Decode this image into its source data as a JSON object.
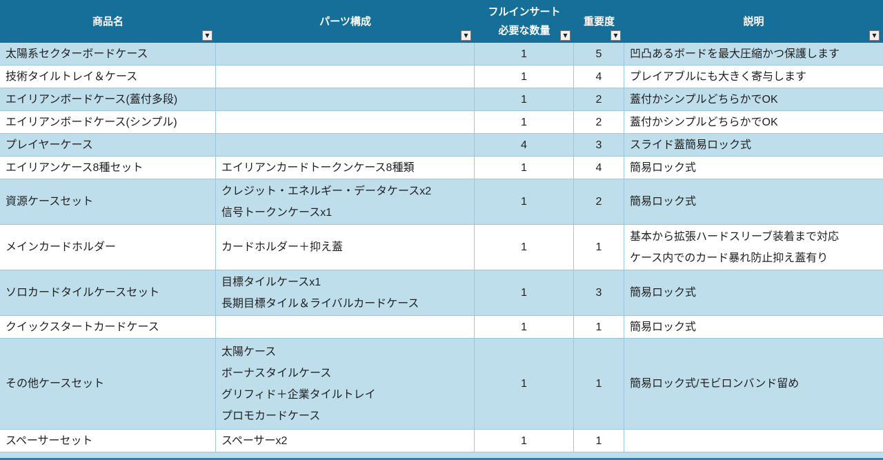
{
  "colors": {
    "header_bg": "#156F99",
    "row_alt_bg": "#BFDEEC",
    "row_bg": "#FFFFFF",
    "grid_line": "#9CC7DF",
    "bottom_strip": "#2E7FB0"
  },
  "table": {
    "header": {
      "filter_icon": "▼",
      "columns": [
        {
          "id": "product",
          "label": "商品名"
        },
        {
          "id": "parts",
          "label": "パーツ構成"
        },
        {
          "id": "qty",
          "label": "フルインサート\n必要な数量"
        },
        {
          "id": "importance",
          "label": "重要度"
        },
        {
          "id": "desc",
          "label": "説明"
        }
      ]
    },
    "rows": [
      {
        "product": "太陽系セクターボードケース",
        "parts": "",
        "qty": "1",
        "importance": "5",
        "desc": "凹凸あるボードを最大圧縮かつ保護します"
      },
      {
        "product": "技術タイルトレイ＆ケース",
        "parts": "",
        "qty": "1",
        "importance": "4",
        "desc": "プレイアブルにも大きく寄与します"
      },
      {
        "product": "エイリアンボードケース(蓋付多段)",
        "parts": "",
        "qty": "1",
        "importance": "2",
        "desc": "蓋付かシンプルどちらかでOK"
      },
      {
        "product": "エイリアンボードケース(シンプル)",
        "parts": "",
        "qty": "1",
        "importance": "2",
        "desc": "蓋付かシンプルどちらかでOK"
      },
      {
        "product": "プレイヤーケース",
        "parts": "",
        "qty": "4",
        "importance": "3",
        "desc": "スライド蓋簡易ロック式"
      },
      {
        "product": "エイリアンケース8種セット",
        "parts": "エイリアンカードトークンケース8種類",
        "qty": "1",
        "importance": "4",
        "desc": "簡易ロック式"
      },
      {
        "product": "資源ケースセット",
        "parts": "クレジット・エネルギー・データケースx2\n信号トークンケースx1",
        "qty": "1",
        "importance": "2",
        "desc": "簡易ロック式"
      },
      {
        "product": "メインカードホルダー",
        "parts": "カードホルダー＋抑え蓋",
        "qty": "1",
        "importance": "1",
        "desc": "基本から拡張ハードスリーブ装着まで対応\nケース内でのカード暴れ防止抑え蓋有り"
      },
      {
        "product": "ソロカードタイルケースセット",
        "parts": "目標タイルケースx1\n長期目標タイル＆ライバルカードケース",
        "qty": "1",
        "importance": "3",
        "desc": "簡易ロック式"
      },
      {
        "product": "クイックスタートカードケース",
        "parts": "",
        "qty": "1",
        "importance": "1",
        "desc": "簡易ロック式"
      },
      {
        "product": "その他ケースセット",
        "parts": "太陽ケース\nボーナスタイルケース\nグリフィド＋企業タイルトレイ\nプロモカードケース",
        "qty": "1",
        "importance": "1",
        "desc": "簡易ロック式/モビロンバンド留め"
      },
      {
        "product": "スペーサーセット",
        "parts": "スペーサーx2",
        "qty": "1",
        "importance": "1",
        "desc": ""
      }
    ]
  }
}
